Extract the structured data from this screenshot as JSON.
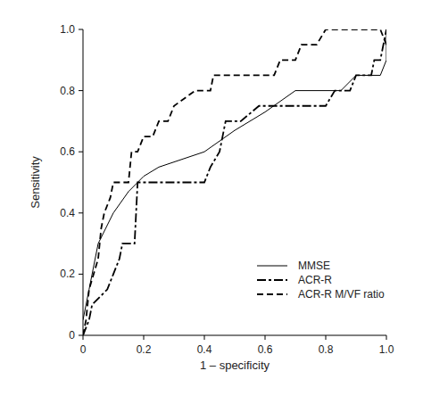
{
  "chart_data": {
    "type": "line",
    "x_label": "1 – specificity",
    "y_label": "Sensitivity",
    "xlim": [
      0,
      1
    ],
    "ylim": [
      0,
      1
    ],
    "xticks": [
      0,
      0.2,
      0.4,
      0.6,
      0.8,
      {
        "value": 1,
        "label": "1.0"
      }
    ],
    "yticks": [
      0,
      0.2,
      0.4,
      0.6,
      0.8,
      {
        "value": 1,
        "label": "1.0"
      }
    ],
    "grid": false,
    "legend": "right",
    "series": [
      {
        "name": "MMSE",
        "color": "#000000",
        "line_style": "solid",
        "x": [
          0,
          0.02,
          0.05,
          0.1,
          0.15,
          0.2,
          0.25,
          0.4,
          0.5,
          0.6,
          0.7,
          0.85,
          0.9,
          0.98,
          1.0,
          1.0
        ],
        "values": [
          0.05,
          0.15,
          0.3,
          0.4,
          0.47,
          0.52,
          0.55,
          0.6,
          0.67,
          0.73,
          0.8,
          0.8,
          0.85,
          0.85,
          0.9,
          1.0
        ]
      },
      {
        "name": "ACR-R",
        "color": "#000000",
        "line_style": "dashdot",
        "x": [
          0,
          0.02,
          0.03,
          0.08,
          0.1,
          0.12,
          0.13,
          0.17,
          0.18,
          0.2,
          0.4,
          0.42,
          0.45,
          0.47,
          0.52,
          0.58,
          0.8,
          0.83,
          0.88,
          0.9,
          0.95,
          0.96,
          0.98,
          1.0
        ],
        "values": [
          0,
          0.05,
          0.1,
          0.15,
          0.2,
          0.25,
          0.3,
          0.3,
          0.5,
          0.5,
          0.5,
          0.55,
          0.6,
          0.7,
          0.7,
          0.75,
          0.75,
          0.8,
          0.8,
          0.85,
          0.85,
          0.9,
          0.9,
          1.0
        ]
      },
      {
        "name": "ACR-R M/VF ratio",
        "color": "#000000",
        "line_style": "dashed",
        "x": [
          0,
          0.01,
          0.02,
          0.05,
          0.06,
          0.07,
          0.09,
          0.1,
          0.15,
          0.16,
          0.18,
          0.2,
          0.23,
          0.25,
          0.28,
          0.3,
          0.37,
          0.42,
          0.43,
          0.63,
          0.65,
          0.7,
          0.72,
          0.77,
          0.8,
          0.98,
          1.0
        ],
        "values": [
          0,
          0.05,
          0.15,
          0.25,
          0.35,
          0.4,
          0.45,
          0.5,
          0.5,
          0.6,
          0.6,
          0.65,
          0.65,
          0.7,
          0.7,
          0.75,
          0.8,
          0.8,
          0.85,
          0.85,
          0.9,
          0.9,
          0.95,
          0.95,
          1.0,
          1.0,
          0.95
        ]
      }
    ]
  }
}
